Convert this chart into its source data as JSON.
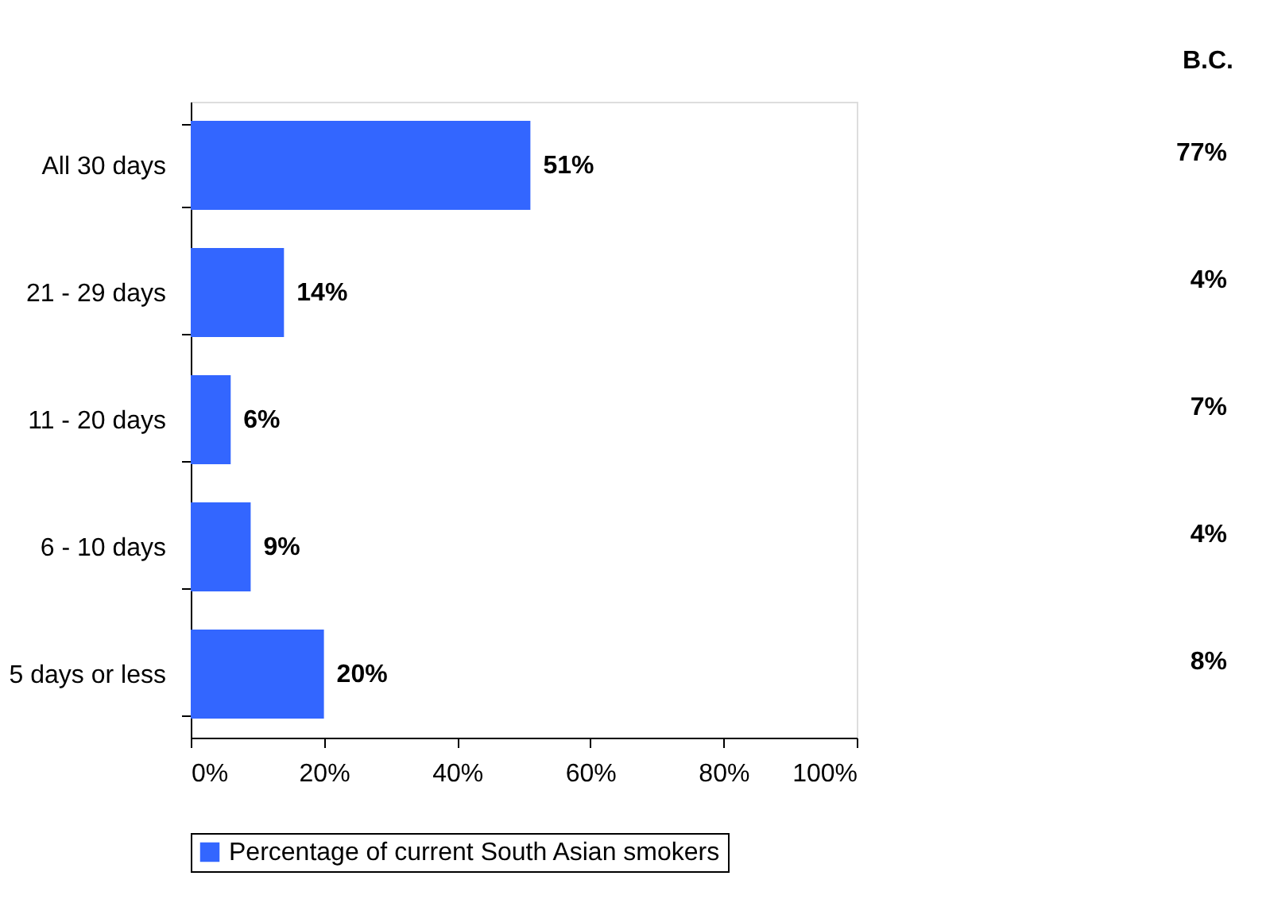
{
  "chart_data": {
    "type": "bar",
    "orientation": "horizontal",
    "categories": [
      "All 30 days",
      "21 - 29 days",
      "11 - 20 days",
      "6 - 10 days",
      "5 days or less"
    ],
    "series": [
      {
        "name": "Percentage of current South Asian smokers",
        "color": "#3366ff",
        "values": [
          51,
          14,
          6,
          9,
          20
        ],
        "value_labels": [
          "51%",
          "14%",
          "6%",
          "9%",
          "20%"
        ]
      }
    ],
    "xlim": [
      0,
      100
    ],
    "xticks": [
      {
        "value": 0,
        "label": "0%"
      },
      {
        "value": 20,
        "label": "20%"
      },
      {
        "value": 40,
        "label": "40%"
      },
      {
        "value": 60,
        "label": "60%"
      },
      {
        "value": 80,
        "label": "80%"
      },
      {
        "value": 100,
        "label": "100%"
      }
    ],
    "grid": false,
    "legend": "bottom",
    "annotations": [
      "B.C.",
      "77%",
      "4%",
      "7%",
      "4%",
      "8%"
    ]
  }
}
